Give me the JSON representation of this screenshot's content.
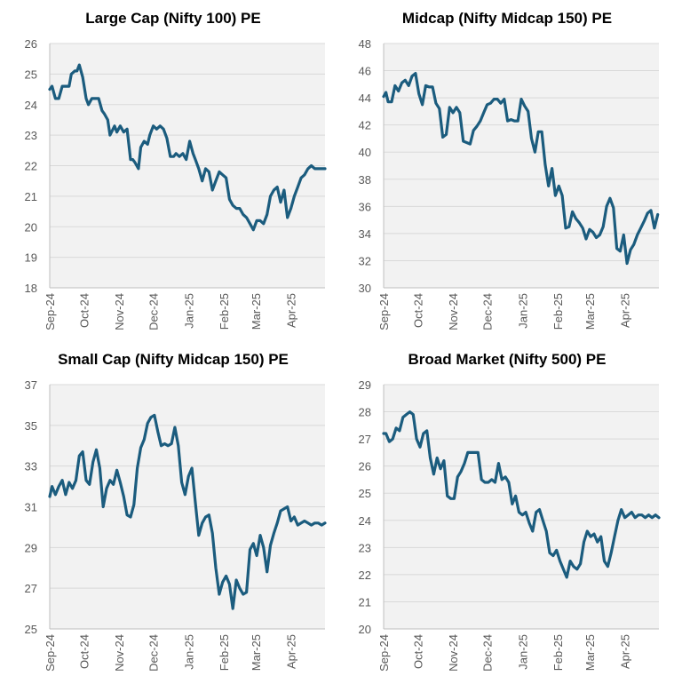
{
  "chart_data": [
    {
      "type": "line",
      "title": "Large Cap (Nifty 100) PE",
      "ylim": [
        18,
        26
      ],
      "yticks": [
        18,
        19,
        20,
        21,
        22,
        23,
        24,
        25,
        26
      ],
      "x_labels": [
        "Sep-24",
        "Oct-24",
        "Nov-24",
        "Dec-24",
        "Jan-25",
        "Feb-25",
        "Mar-25",
        "Apr-25"
      ],
      "x_range": [
        "2024-09-01",
        "2025-05-01"
      ],
      "grid": "horizontal",
      "line_color": "#1b5c7e",
      "series": [
        {
          "x": [
            "2024-09-01",
            "2024-09-03",
            "2024-09-06",
            "2024-09-09",
            "2024-09-12",
            "2024-09-14",
            "2024-09-18",
            "2024-09-20",
            "2024-09-23",
            "2024-09-25",
            "2024-09-27",
            "2024-09-30",
            "2024-10-03",
            "2024-10-05",
            "2024-10-08",
            "2024-10-10",
            "2024-10-14",
            "2024-10-17",
            "2024-10-19",
            "2024-10-22",
            "2024-10-24",
            "2024-10-28",
            "2024-10-30",
            "2024-11-02",
            "2024-11-05",
            "2024-11-08",
            "2024-11-11",
            "2024-11-13",
            "2024-11-15",
            "2024-11-18",
            "2024-11-20",
            "2024-11-23",
            "2024-11-26",
            "2024-11-28",
            "2024-12-01",
            "2024-12-04",
            "2024-12-07",
            "2024-12-10",
            "2024-12-13",
            "2024-12-16",
            "2024-12-19",
            "2024-12-21",
            "2024-12-24",
            "2024-12-27",
            "2024-12-30",
            "2025-01-02",
            "2025-01-05",
            "2025-01-07",
            "2025-01-10",
            "2025-01-13",
            "2025-01-16",
            "2025-01-19",
            "2025-01-22",
            "2025-01-25",
            "2025-01-28",
            "2025-01-31",
            "2025-02-03",
            "2025-02-06",
            "2025-02-09",
            "2025-02-12",
            "2025-02-15",
            "2025-02-18",
            "2025-02-21",
            "2025-02-24",
            "2025-02-27",
            "2025-03-02",
            "2025-03-05",
            "2025-03-08",
            "2025-03-11",
            "2025-03-14",
            "2025-03-17",
            "2025-03-20",
            "2025-03-23",
            "2025-03-26",
            "2025-03-29",
            "2025-04-01",
            "2025-04-04",
            "2025-04-07",
            "2025-04-10",
            "2025-04-13",
            "2025-04-16",
            "2025-04-19",
            "2025-04-22",
            "2025-04-25",
            "2025-04-28",
            "2025-05-01"
          ],
          "y": [
            24.5,
            24.6,
            24.2,
            24.2,
            24.6,
            24.6,
            24.6,
            25.0,
            25.1,
            25.1,
            25.3,
            24.9,
            24.2,
            24.0,
            24.2,
            24.2,
            24.2,
            23.8,
            23.7,
            23.5,
            23.0,
            23.3,
            23.1,
            23.3,
            23.1,
            23.2,
            22.2,
            22.2,
            22.1,
            21.9,
            22.6,
            22.8,
            22.7,
            23.0,
            23.3,
            23.2,
            23.3,
            23.2,
            22.9,
            22.3,
            22.3,
            22.4,
            22.3,
            22.4,
            22.2,
            22.8,
            22.4,
            22.2,
            21.9,
            21.5,
            21.9,
            21.8,
            21.2,
            21.5,
            21.8,
            21.7,
            21.6,
            20.9,
            20.7,
            20.6,
            20.6,
            20.4,
            20.3,
            20.1,
            19.9,
            20.2,
            20.2,
            20.1,
            20.4,
            21.0,
            21.2,
            21.3,
            20.8,
            21.2,
            20.3,
            20.6,
            21.0,
            21.3,
            21.6,
            21.7,
            21.9,
            22.0,
            21.9,
            21.9,
            21.9,
            21.9
          ]
        }
      ]
    },
    {
      "type": "line",
      "title": "Midcap (Nifty Midcap 150) PE",
      "ylim": [
        30,
        48
      ],
      "yticks": [
        30,
        32,
        34,
        36,
        38,
        40,
        42,
        44,
        46,
        48
      ],
      "x_labels": [
        "Sep-24",
        "Oct-24",
        "Nov-24",
        "Dec-24",
        "Jan-25",
        "Feb-25",
        "Mar-25",
        "Apr-25"
      ],
      "x_range": [
        "2024-09-01",
        "2025-05-01"
      ],
      "grid": "horizontal",
      "line_color": "#1b5c7e",
      "series": [
        {
          "x": [
            "2024-09-01",
            "2024-09-03",
            "2024-09-05",
            "2024-09-08",
            "2024-09-11",
            "2024-09-14",
            "2024-09-17",
            "2024-09-20",
            "2024-09-23",
            "2024-09-26",
            "2024-09-29",
            "2024-10-02",
            "2024-10-05",
            "2024-10-08",
            "2024-10-11",
            "2024-10-14",
            "2024-10-17",
            "2024-10-20",
            "2024-10-23",
            "2024-10-26",
            "2024-10-29",
            "2024-11-01",
            "2024-11-04",
            "2024-11-07",
            "2024-11-10",
            "2024-11-13",
            "2024-11-16",
            "2024-11-19",
            "2024-11-22",
            "2024-11-25",
            "2024-11-28",
            "2024-12-01",
            "2024-12-04",
            "2024-12-07",
            "2024-12-10",
            "2024-12-13",
            "2024-12-16",
            "2024-12-19",
            "2024-12-22",
            "2024-12-25",
            "2024-12-28",
            "2024-12-31",
            "2025-01-03",
            "2025-01-06",
            "2025-01-09",
            "2025-01-12",
            "2025-01-15",
            "2025-01-18",
            "2025-01-21",
            "2025-01-24",
            "2025-01-27",
            "2025-01-30",
            "2025-02-02",
            "2025-02-05",
            "2025-02-08",
            "2025-02-11",
            "2025-02-14",
            "2025-02-17",
            "2025-02-20",
            "2025-02-23",
            "2025-02-26",
            "2025-03-01",
            "2025-03-04",
            "2025-03-07",
            "2025-03-10",
            "2025-03-13",
            "2025-03-16",
            "2025-03-19",
            "2025-03-22",
            "2025-03-25",
            "2025-03-28",
            "2025-03-31",
            "2025-04-03",
            "2025-04-06",
            "2025-04-09",
            "2025-04-12",
            "2025-04-15",
            "2025-04-18",
            "2025-04-21",
            "2025-04-24",
            "2025-04-27",
            "2025-04-30"
          ],
          "y": [
            44.1,
            44.4,
            43.7,
            43.7,
            44.9,
            44.5,
            45.1,
            45.3,
            44.9,
            45.6,
            45.8,
            44.3,
            43.5,
            44.9,
            44.8,
            44.8,
            43.6,
            43.2,
            41.1,
            41.3,
            43.3,
            42.9,
            43.3,
            42.9,
            40.8,
            40.7,
            40.6,
            41.6,
            41.9,
            42.3,
            42.9,
            43.5,
            43.6,
            43.9,
            43.9,
            43.6,
            43.9,
            42.3,
            42.4,
            42.3,
            42.3,
            43.9,
            43.4,
            43.0,
            41.0,
            40.0,
            41.5,
            41.5,
            39.1,
            37.5,
            38.8,
            36.8,
            37.5,
            36.8,
            34.4,
            34.5,
            35.6,
            35.1,
            34.8,
            34.4,
            33.6,
            34.3,
            34.1,
            33.7,
            33.9,
            34.5,
            36.0,
            36.6,
            35.9,
            32.9,
            32.7,
            33.9,
            31.8,
            32.8,
            33.2,
            33.9,
            34.4,
            34.9,
            35.5,
            35.7,
            34.4,
            35.4
          ]
        }
      ]
    },
    {
      "type": "line",
      "title": "Small Cap (Nifty Midcap 150) PE",
      "ylim": [
        25,
        37
      ],
      "yticks": [
        25,
        27,
        29,
        31,
        33,
        35,
        37
      ],
      "x_labels": [
        "Sep-24",
        "Oct-24",
        "Nov-24",
        "Dec-24",
        "Jan-25",
        "Feb-25",
        "Mar-25",
        "Apr-25"
      ],
      "x_range": [
        "2024-09-01",
        "2025-05-01"
      ],
      "grid": "horizontal",
      "line_color": "#1b5c7e",
      "series": [
        {
          "x": [
            "2024-09-01",
            "2024-09-03",
            "2024-09-06",
            "2024-09-09",
            "2024-09-12",
            "2024-09-15",
            "2024-09-18",
            "2024-09-21",
            "2024-09-24",
            "2024-09-27",
            "2024-09-30",
            "2024-10-03",
            "2024-10-06",
            "2024-10-09",
            "2024-10-12",
            "2024-10-15",
            "2024-10-18",
            "2024-10-21",
            "2024-10-24",
            "2024-10-27",
            "2024-10-30",
            "2024-11-02",
            "2024-11-05",
            "2024-11-08",
            "2024-11-11",
            "2024-11-14",
            "2024-11-17",
            "2024-11-20",
            "2024-11-23",
            "2024-11-26",
            "2024-11-29",
            "2024-12-02",
            "2024-12-05",
            "2024-12-08",
            "2024-12-11",
            "2024-12-14",
            "2024-12-17",
            "2024-12-20",
            "2024-12-23",
            "2024-12-26",
            "2024-12-29",
            "2025-01-01",
            "2025-01-04",
            "2025-01-07",
            "2025-01-10",
            "2025-01-13",
            "2025-01-16",
            "2025-01-19",
            "2025-01-22",
            "2025-01-25",
            "2025-01-28",
            "2025-01-31",
            "2025-02-03",
            "2025-02-06",
            "2025-02-09",
            "2025-02-12",
            "2025-02-15",
            "2025-02-18",
            "2025-02-21",
            "2025-02-24",
            "2025-02-27",
            "2025-03-02",
            "2025-03-05",
            "2025-03-08",
            "2025-03-11",
            "2025-03-14",
            "2025-03-17",
            "2025-03-20",
            "2025-03-23",
            "2025-03-26",
            "2025-03-29",
            "2025-04-01",
            "2025-04-04",
            "2025-04-07",
            "2025-04-10",
            "2025-04-13",
            "2025-04-16",
            "2025-04-19",
            "2025-04-22",
            "2025-04-25",
            "2025-04-28",
            "2025-05-01"
          ],
          "y": [
            31.5,
            32.0,
            31.6,
            32.0,
            32.3,
            31.6,
            32.2,
            31.9,
            32.3,
            33.5,
            33.7,
            32.3,
            32.1,
            33.2,
            33.8,
            32.9,
            31.0,
            31.9,
            32.3,
            32.1,
            32.8,
            32.2,
            31.5,
            30.6,
            30.5,
            31.1,
            32.9,
            33.9,
            34.3,
            35.1,
            35.4,
            35.5,
            34.7,
            34.0,
            34.1,
            34.0,
            34.1,
            34.9,
            34.0,
            32.2,
            31.6,
            32.5,
            32.9,
            31.2,
            29.6,
            30.2,
            30.5,
            30.6,
            29.7,
            28.0,
            26.7,
            27.3,
            27.6,
            27.2,
            26.0,
            27.4,
            27.0,
            26.7,
            26.8,
            28.9,
            29.2,
            28.6,
            29.6,
            29.0,
            27.8,
            29.1,
            29.7,
            30.2,
            30.8,
            30.9,
            31.0,
            30.3,
            30.5,
            30.1,
            30.2,
            30.3,
            30.2,
            30.1,
            30.2,
            30.2,
            30.1,
            30.2
          ]
        }
      ]
    },
    {
      "type": "line",
      "title": "Broad Market (Nifty 500) PE",
      "ylim": [
        20,
        29
      ],
      "yticks": [
        20,
        21,
        22,
        23,
        24,
        25,
        26,
        27,
        28,
        29
      ],
      "x_labels": [
        "Sep-24",
        "Oct-24",
        "Nov-24",
        "Dec-24",
        "Jan-25",
        "Feb-25",
        "Mar-25",
        "Apr-25"
      ],
      "x_range": [
        "2024-09-01",
        "2025-05-01"
      ],
      "grid": "horizontal",
      "line_color": "#1b5c7e",
      "series": [
        {
          "x": [
            "2024-09-01",
            "2024-09-03",
            "2024-09-06",
            "2024-09-09",
            "2024-09-12",
            "2024-09-15",
            "2024-09-18",
            "2024-09-21",
            "2024-09-24",
            "2024-09-27",
            "2024-09-30",
            "2024-10-03",
            "2024-10-06",
            "2024-10-09",
            "2024-10-12",
            "2024-10-15",
            "2024-10-18",
            "2024-10-21",
            "2024-10-24",
            "2024-10-27",
            "2024-10-30",
            "2024-11-02",
            "2024-11-05",
            "2024-11-08",
            "2024-11-11",
            "2024-11-14",
            "2024-11-17",
            "2024-11-20",
            "2024-11-23",
            "2024-11-26",
            "2024-11-29",
            "2024-12-02",
            "2024-12-05",
            "2024-12-08",
            "2024-12-11",
            "2024-12-14",
            "2024-12-17",
            "2024-12-20",
            "2024-12-23",
            "2024-12-26",
            "2024-12-29",
            "2025-01-01",
            "2025-01-04",
            "2025-01-07",
            "2025-01-10",
            "2025-01-13",
            "2025-01-16",
            "2025-01-19",
            "2025-01-22",
            "2025-01-25",
            "2025-01-28",
            "2025-01-31",
            "2025-02-03",
            "2025-02-06",
            "2025-02-09",
            "2025-02-12",
            "2025-02-15",
            "2025-02-18",
            "2025-02-21",
            "2025-02-24",
            "2025-02-27",
            "2025-03-02",
            "2025-03-05",
            "2025-03-08",
            "2025-03-11",
            "2025-03-14",
            "2025-03-17",
            "2025-03-20",
            "2025-03-23",
            "2025-03-26",
            "2025-03-29",
            "2025-04-01",
            "2025-04-04",
            "2025-04-07",
            "2025-04-10",
            "2025-04-13",
            "2025-04-16",
            "2025-04-19",
            "2025-04-22",
            "2025-04-25",
            "2025-04-28",
            "2025-05-01"
          ],
          "y": [
            27.2,
            27.2,
            26.9,
            27.0,
            27.4,
            27.3,
            27.8,
            27.9,
            28.0,
            27.9,
            27.0,
            26.7,
            27.2,
            27.3,
            26.3,
            25.7,
            26.3,
            25.9,
            26.2,
            24.9,
            24.8,
            24.8,
            25.6,
            25.8,
            26.1,
            26.5,
            26.5,
            26.5,
            26.5,
            25.5,
            25.4,
            25.4,
            25.5,
            25.4,
            26.1,
            25.5,
            25.6,
            25.4,
            24.6,
            24.9,
            24.3,
            24.2,
            24.3,
            23.9,
            23.6,
            24.3,
            24.4,
            24.0,
            23.6,
            22.8,
            22.7,
            22.9,
            22.5,
            22.2,
            21.9,
            22.5,
            22.3,
            22.2,
            22.4,
            23.2,
            23.6,
            23.4,
            23.5,
            23.2,
            23.4,
            22.5,
            22.3,
            22.8,
            23.4,
            24.0,
            24.4,
            24.1,
            24.2,
            24.3,
            24.1,
            24.2,
            24.2,
            24.1,
            24.2,
            24.1,
            24.2,
            24.1
          ]
        }
      ]
    }
  ]
}
